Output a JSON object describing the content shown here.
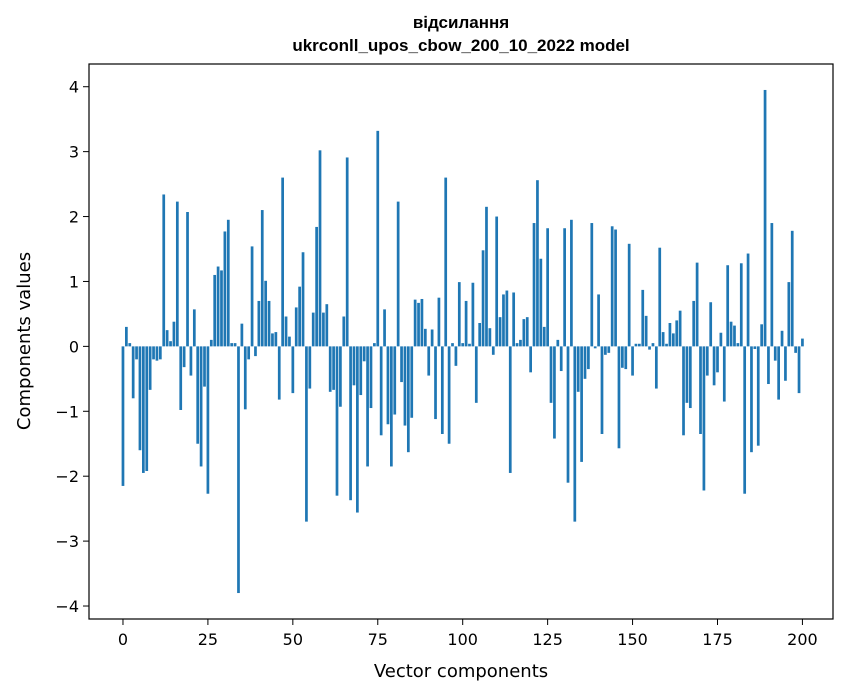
{
  "chart_data": {
    "type": "bar",
    "title_line1": "відсилання",
    "title_line2": "ukrconll_upos_cbow_200_10_2022 model",
    "xlabel": "Vector components",
    "ylabel": "Components values",
    "xlim": [
      -10,
      209
    ],
    "ylim": [
      -4.2,
      4.35
    ],
    "xticks": [
      0,
      25,
      50,
      75,
      100,
      125,
      150,
      175,
      200
    ],
    "yticks": [
      -4,
      -3,
      -2,
      -1,
      0,
      1,
      2,
      3,
      4
    ],
    "xtick_labels": [
      "0",
      "25",
      "50",
      "75",
      "100",
      "125",
      "150",
      "175",
      "200"
    ],
    "ytick_labels": [
      "−4",
      "−3",
      "−2",
      "−1",
      "0",
      "1",
      "2",
      "3",
      "4"
    ],
    "bar_color": "#1f77b4",
    "values": [
      -2.15,
      0.3,
      0.05,
      -0.8,
      -0.2,
      -1.6,
      -1.95,
      -1.92,
      -0.67,
      -0.2,
      -0.22,
      -0.2,
      2.34,
      0.25,
      0.08,
      0.38,
      2.23,
      -0.98,
      -0.32,
      2.07,
      -0.45,
      0.57,
      -1.5,
      -1.85,
      -0.62,
      -2.27,
      0.1,
      1.1,
      1.23,
      1.17,
      1.77,
      1.95,
      0.05,
      0.05,
      -3.8,
      0.35,
      -0.97,
      -0.2,
      1.54,
      -0.15,
      0.7,
      2.1,
      1.01,
      0.7,
      0.2,
      0.22,
      -0.82,
      2.6,
      0.46,
      0.15,
      -0.72,
      0.6,
      0.92,
      1.45,
      -2.7,
      -0.65,
      0.52,
      1.84,
      3.02,
      0.52,
      0.65,
      -0.7,
      -0.67,
      -2.3,
      -0.93,
      0.46,
      2.91,
      -2.37,
      -0.6,
      -2.56,
      -0.75,
      -0.23,
      -1.85,
      -0.95,
      0.05,
      3.32,
      -1.37,
      0.57,
      -1.2,
      -1.85,
      -1.05,
      2.23,
      -0.55,
      -1.22,
      -1.63,
      -1.1,
      0.72,
      0.67,
      0.73,
      0.27,
      -0.45,
      0.26,
      -1.12,
      0.75,
      -1.35,
      2.6,
      -1.5,
      0.05,
      -0.3,
      0.99,
      0.05,
      0.7,
      0.04,
      0.98,
      -0.87,
      0.36,
      1.48,
      2.15,
      0.28,
      -0.13,
      2.0,
      0.45,
      0.8,
      0.86,
      -1.95,
      0.83,
      0.05,
      0.1,
      0.42,
      0.45,
      -0.4,
      1.9,
      2.56,
      1.35,
      0.3,
      1.82,
      -0.87,
      -1.42,
      0.1,
      -0.38,
      1.82,
      -2.1,
      1.95,
      -2.7,
      -0.7,
      -1.78,
      -0.5,
      -0.35,
      1.9,
      -0.03,
      0.8,
      -1.35,
      -0.13,
      -0.1,
      1.85,
      1.8,
      -1.57,
      -0.33,
      -0.35,
      1.58,
      -0.45,
      0.04,
      0.04,
      0.87,
      0.47,
      -0.05,
      0.05,
      -0.65,
      1.52,
      0.22,
      0.04,
      0.36,
      0.2,
      0.4,
      0.55,
      -1.37,
      -0.87,
      -0.95,
      0.7,
      1.29,
      -1.35,
      -2.22,
      -0.45,
      0.68,
      -0.6,
      -0.4,
      0.21,
      -0.85,
      1.25,
      0.38,
      0.32,
      0.05,
      1.28,
      -2.27,
      1.43,
      -1.63,
      -0.04,
      -1.53,
      0.34,
      3.95,
      -0.58,
      1.9,
      -0.22,
      -0.82,
      0.24,
      -0.53,
      0.99,
      1.78,
      -0.1,
      -0.72,
      0.12
    ]
  }
}
